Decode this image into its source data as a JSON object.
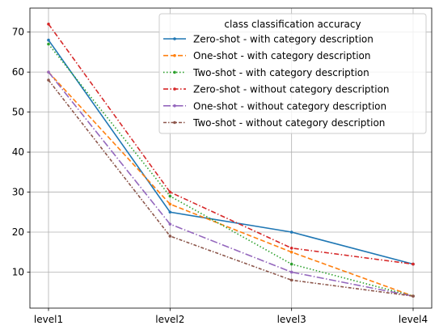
{
  "chart_data": {
    "type": "line",
    "categories": [
      "level1",
      "level2",
      "level3",
      "level4"
    ],
    "ylim": [
      1,
      76
    ],
    "yticks": [
      10,
      20,
      30,
      40,
      50,
      60,
      70
    ],
    "grid": true,
    "legend": {
      "title": "class classification accuracy",
      "placement": "top-right"
    },
    "series": [
      {
        "name": "Zero-shot - with category description",
        "values": [
          68,
          25,
          20,
          12
        ],
        "color": "#1f77b4",
        "dash": "solid"
      },
      {
        "name": "One-shot - with category description",
        "values": [
          60,
          27,
          15,
          4
        ],
        "color": "#ff7f0e",
        "dash": "dashed"
      },
      {
        "name": "Two-shot - with category description",
        "values": [
          67,
          29,
          12,
          4
        ],
        "color": "#2ca02c",
        "dash": "dotted"
      },
      {
        "name": "Zero-shot - without category description",
        "values": [
          72,
          30,
          16,
          12
        ],
        "color": "#d62728",
        "dash": "dashdot"
      },
      {
        "name": "One-shot - without category description",
        "values": [
          60,
          22,
          10,
          4
        ],
        "color": "#9467bd",
        "dash": "longdashdot"
      },
      {
        "name": "Two-shot - without category description",
        "values": [
          58,
          19,
          8,
          4
        ],
        "color": "#8c564b",
        "dash": "densedashdot"
      }
    ]
  }
}
